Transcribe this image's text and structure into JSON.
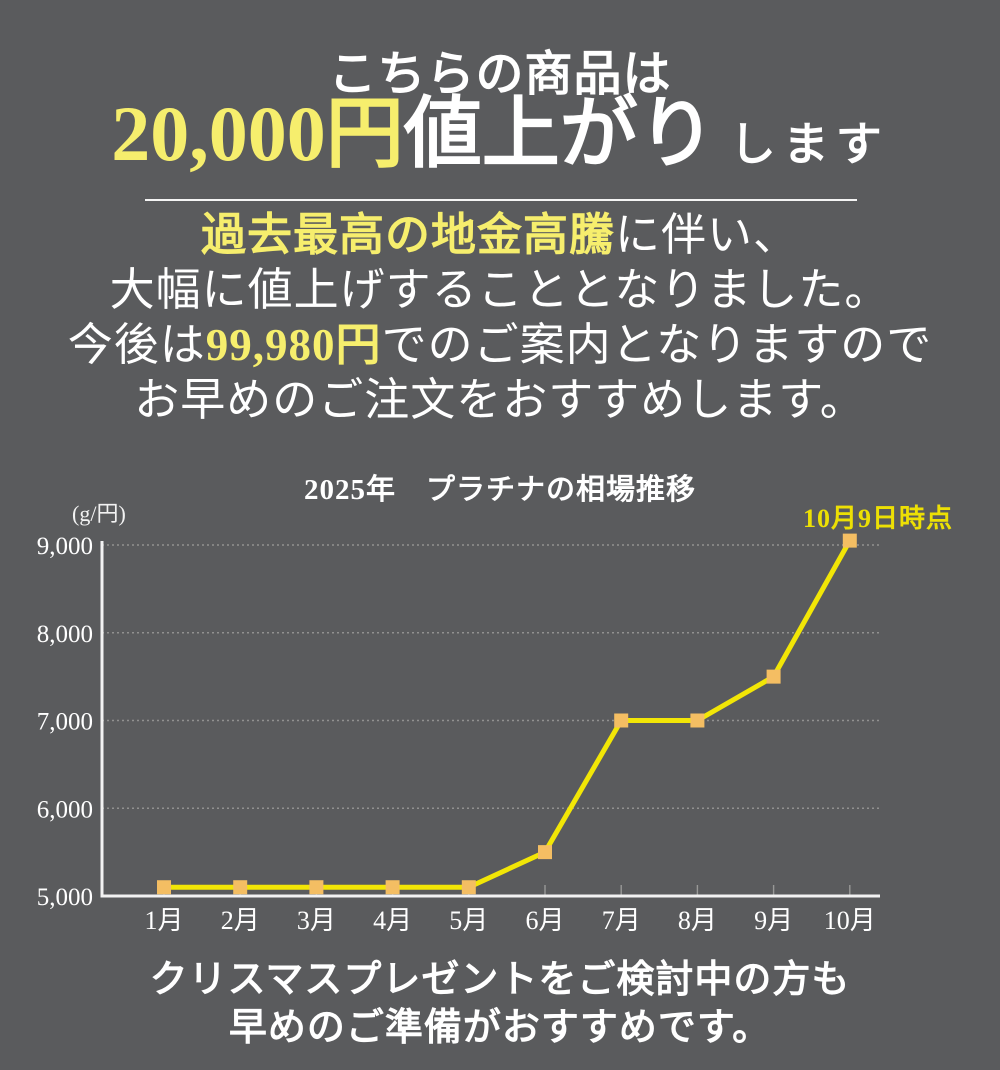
{
  "colors": {
    "background": "#5a5b5d",
    "pale_yellow": "#f6ee6d",
    "bright_yellow": "#ede004",
    "white": "#ffffff",
    "line_yellow": "#f2e606",
    "marker_orange": "#f4be63",
    "grid": "#9b9b99",
    "axis": "#f2f2f2",
    "tick": "#a8a8a6"
  },
  "header": {
    "line1": "こちらの商品は",
    "price_amount": "20,000円",
    "price_label": "値上がり",
    "suffix": "します"
  },
  "notice": {
    "line1_highlight": "過去最高の地金高騰",
    "line1_rest": "に伴い、",
    "line2": "大幅に値上げすることとなりました。",
    "line3_prefix": "今後は",
    "line3_price": "99,980円",
    "line3_suffix": "でのご案内となりますので",
    "line4": "お早めのご注文をおすすめします。"
  },
  "chart_data": {
    "type": "line",
    "title": "2025年　プラチナの相場推移",
    "unit_label": "(g/円)",
    "annotation": "10月9日時点",
    "categories": [
      "1月",
      "2月",
      "3月",
      "4月",
      "5月",
      "6月",
      "7月",
      "8月",
      "9月",
      "10月"
    ],
    "values": [
      5100,
      5100,
      5100,
      5100,
      5100,
      5500,
      7000,
      7000,
      7500,
      9050
    ],
    "ylabel": "g/円",
    "ylim": [
      5000,
      9000
    ],
    "yticks": [
      5000,
      6000,
      7000,
      8000,
      9000
    ],
    "grid": true,
    "legend": "none",
    "line_color": "#f2e606",
    "marker_color": "#f4be63"
  },
  "footer": {
    "line1": "クリスマスプレゼントをご検討中の方も",
    "line2": "早めのご準備がおすすめです。"
  }
}
